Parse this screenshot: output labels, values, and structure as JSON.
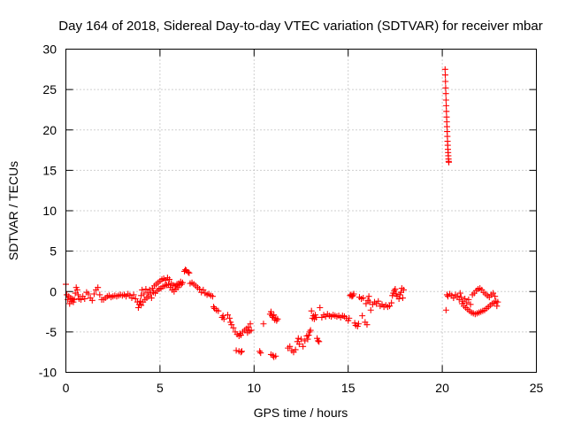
{
  "chart_data": {
    "type": "scatter",
    "title": "Day 164 of 2018, Sidereal Day-to-day VTEC variation (SDTVAR) for receiver mbar",
    "xlabel": "GPS time / hours",
    "ylabel": "SDTVAR / TECUs",
    "xlim": [
      0,
      25
    ],
    "ylim": [
      -10,
      30
    ],
    "xticks": [
      0,
      5,
      10,
      15,
      20,
      25
    ],
    "yticks": [
      -10,
      -5,
      0,
      5,
      10,
      15,
      20,
      25,
      30
    ],
    "xtick_labels": [
      "0",
      "5",
      "10",
      "15",
      "20",
      "25"
    ],
    "ytick_labels": [
      "-10",
      "-5",
      "0",
      "5",
      "10",
      "15",
      "20",
      "25",
      "30"
    ],
    "grid": true,
    "legend": "none",
    "marker": "plus",
    "series": [
      {
        "name": "SDTVAR",
        "color": "#ff0000",
        "points": [
          [
            0.0,
            0.9
          ],
          [
            0.05,
            -0.4
          ],
          [
            0.1,
            -1.0
          ],
          [
            0.15,
            -0.6
          ],
          [
            0.2,
            -1.5
          ],
          [
            0.25,
            -0.8
          ],
          [
            0.3,
            -1.2
          ],
          [
            0.35,
            -0.9
          ],
          [
            0.4,
            -1.3
          ],
          [
            0.45,
            -1.0
          ],
          [
            0.5,
            -0.2
          ],
          [
            0.55,
            0.5
          ],
          [
            0.6,
            0.2
          ],
          [
            0.65,
            -0.4
          ],
          [
            0.7,
            -0.9
          ],
          [
            0.8,
            -1.0
          ],
          [
            0.9,
            -0.6
          ],
          [
            1.0,
            -0.9
          ],
          [
            1.1,
            -0.1
          ],
          [
            1.2,
            -0.3
          ],
          [
            1.3,
            -0.8
          ],
          [
            1.4,
            -1.1
          ],
          [
            1.5,
            -0.3
          ],
          [
            1.6,
            0.2
          ],
          [
            1.7,
            0.5
          ],
          [
            1.8,
            -0.4
          ],
          [
            1.9,
            -1.0
          ],
          [
            2.0,
            -1.0
          ],
          [
            2.1,
            -0.8
          ],
          [
            2.2,
            -0.6
          ],
          [
            2.3,
            -0.5
          ],
          [
            2.4,
            -0.7
          ],
          [
            2.5,
            -0.6
          ],
          [
            2.6,
            -0.5
          ],
          [
            2.7,
            -0.6
          ],
          [
            2.8,
            -0.5
          ],
          [
            2.9,
            -0.4
          ],
          [
            3.0,
            -0.5
          ],
          [
            3.1,
            -0.4
          ],
          [
            3.2,
            -0.6
          ],
          [
            3.3,
            -0.3
          ],
          [
            3.4,
            -0.5
          ],
          [
            3.5,
            -0.8
          ],
          [
            3.6,
            -0.4
          ],
          [
            3.7,
            -0.9
          ],
          [
            3.8,
            -1.3
          ],
          [
            3.85,
            -2.0
          ],
          [
            3.9,
            -1.6
          ],
          [
            3.95,
            -1.2
          ],
          [
            4.0,
            -0.5
          ],
          [
            4.0,
            -1.7
          ],
          [
            4.05,
            0.2
          ],
          [
            4.1,
            -1.3
          ],
          [
            4.15,
            -0.3
          ],
          [
            4.2,
            -1.0
          ],
          [
            4.25,
            0.3
          ],
          [
            4.3,
            -0.8
          ],
          [
            4.35,
            -0.1
          ],
          [
            4.4,
            -0.6
          ],
          [
            4.45,
            0.2
          ],
          [
            4.5,
            -0.3
          ],
          [
            4.55,
            -0.8
          ],
          [
            4.6,
            0.4
          ],
          [
            4.65,
            -0.1
          ],
          [
            4.7,
            0.7
          ],
          [
            4.75,
            -0.2
          ],
          [
            4.8,
            0.9
          ],
          [
            4.85,
            0.1
          ],
          [
            4.9,
            1.1
          ],
          [
            4.95,
            0.3
          ],
          [
            5.0,
            1.3
          ],
          [
            5.05,
            0.4
          ],
          [
            5.1,
            1.5
          ],
          [
            5.15,
            0.6
          ],
          [
            5.2,
            1.6
          ],
          [
            5.25,
            0.7
          ],
          [
            5.3,
            1.4
          ],
          [
            5.35,
            0.8
          ],
          [
            5.4,
            1.7
          ],
          [
            5.45,
            0.9
          ],
          [
            5.5,
            1.5
          ],
          [
            5.55,
            0.5
          ],
          [
            5.6,
            1.0
          ],
          [
            5.65,
            0.2
          ],
          [
            5.7,
            0.8
          ],
          [
            5.75,
            0.0
          ],
          [
            5.8,
            0.7
          ],
          [
            5.85,
            0.3
          ],
          [
            5.9,
            0.9
          ],
          [
            5.95,
            0.5
          ],
          [
            6.0,
            1.0
          ],
          [
            6.05,
            0.8
          ],
          [
            6.1,
            1.2
          ],
          [
            6.15,
            0.9
          ],
          [
            6.2,
            1.1
          ],
          [
            6.3,
            2.5
          ],
          [
            6.35,
            2.7
          ],
          [
            6.4,
            2.6
          ],
          [
            6.5,
            2.4
          ],
          [
            6.55,
            2.3
          ],
          [
            6.6,
            1.0
          ],
          [
            6.7,
            1.1
          ],
          [
            6.8,
            0.9
          ],
          [
            6.9,
            0.7
          ],
          [
            7.0,
            0.5
          ],
          [
            7.1,
            0.3
          ],
          [
            7.2,
            -0.1
          ],
          [
            7.3,
            0.2
          ],
          [
            7.4,
            -0.2
          ],
          [
            7.5,
            -0.4
          ],
          [
            7.6,
            -0.3
          ],
          [
            7.7,
            -0.5
          ],
          [
            7.8,
            -0.6
          ],
          [
            7.85,
            -1.9
          ],
          [
            7.9,
            -2.1
          ],
          [
            8.0,
            -2.3
          ],
          [
            8.1,
            -2.4
          ],
          [
            8.3,
            -3.2
          ],
          [
            8.35,
            -3.0
          ],
          [
            8.4,
            -3.4
          ],
          [
            8.6,
            -2.9
          ],
          [
            8.7,
            -3.3
          ],
          [
            8.75,
            -3.8
          ],
          [
            8.8,
            -4.1
          ],
          [
            8.9,
            -4.5
          ],
          [
            9.0,
            -5.0
          ],
          [
            9.1,
            -5.3
          ],
          [
            9.2,
            -5.5
          ],
          [
            9.25,
            -5.2
          ],
          [
            9.3,
            -5.4
          ],
          [
            9.4,
            -5.0
          ],
          [
            9.5,
            -4.8
          ],
          [
            9.6,
            -4.6
          ],
          [
            9.65,
            -5.1
          ],
          [
            9.7,
            -4.4
          ],
          [
            9.75,
            -4.9
          ],
          [
            9.8,
            -4.0
          ],
          [
            9.85,
            -4.8
          ],
          [
            9.05,
            -7.3
          ],
          [
            9.2,
            -7.4
          ],
          [
            9.3,
            -7.5
          ],
          [
            9.35,
            -7.4
          ],
          [
            10.3,
            -7.4
          ],
          [
            10.35,
            -7.6
          ],
          [
            10.5,
            -4.0
          ],
          [
            10.9,
            -7.8
          ],
          [
            11.0,
            -7.9
          ],
          [
            11.05,
            -8.1
          ],
          [
            11.15,
            -8.0
          ],
          [
            10.85,
            -2.8
          ],
          [
            10.9,
            -2.5
          ],
          [
            10.95,
            -3.0
          ],
          [
            11.0,
            -3.2
          ],
          [
            11.05,
            -2.9
          ],
          [
            11.1,
            -3.5
          ],
          [
            11.15,
            -3.3
          ],
          [
            11.2,
            -3.6
          ],
          [
            11.25,
            -3.4
          ],
          [
            11.8,
            -7.0
          ],
          [
            11.9,
            -6.8
          ],
          [
            12.0,
            -7.3
          ],
          [
            12.1,
            -7.5
          ],
          [
            12.2,
            -7.2
          ],
          [
            12.3,
            -6.2
          ],
          [
            12.35,
            -5.8
          ],
          [
            12.4,
            -6.5
          ],
          [
            12.5,
            -5.9
          ],
          [
            12.6,
            -6.8
          ],
          [
            12.7,
            -6.1
          ],
          [
            12.8,
            -5.5
          ],
          [
            12.85,
            -5.9
          ],
          [
            12.9,
            -5.4
          ],
          [
            12.95,
            -5.0
          ],
          [
            13.0,
            -4.8
          ],
          [
            13.05,
            -2.4
          ],
          [
            13.1,
            -3.3
          ],
          [
            13.15,
            -3.0
          ],
          [
            13.2,
            -3.4
          ],
          [
            13.25,
            -2.9
          ],
          [
            13.3,
            -3.2
          ],
          [
            13.35,
            -5.8
          ],
          [
            13.4,
            -6.1
          ],
          [
            13.45,
            -6.2
          ],
          [
            13.5,
            -2.0
          ],
          [
            13.6,
            -3.2
          ],
          [
            13.7,
            -2.9
          ],
          [
            13.8,
            -3.1
          ],
          [
            13.9,
            -2.8
          ],
          [
            14.0,
            -3.0
          ],
          [
            14.1,
            -3.1
          ],
          [
            14.2,
            -2.9
          ],
          [
            14.3,
            -3.0
          ],
          [
            14.4,
            -3.1
          ],
          [
            14.5,
            -3.0
          ],
          [
            14.6,
            -3.2
          ],
          [
            14.7,
            -3.0
          ],
          [
            14.8,
            -3.1
          ],
          [
            14.9,
            -3.3
          ],
          [
            15.0,
            -3.6
          ],
          [
            15.05,
            -3.3
          ],
          [
            15.1,
            -0.5
          ],
          [
            15.15,
            -0.4
          ],
          [
            15.2,
            -0.6
          ],
          [
            15.25,
            -0.5
          ],
          [
            15.3,
            -0.3
          ],
          [
            15.35,
            -3.9
          ],
          [
            15.4,
            -4.2
          ],
          [
            15.5,
            -4.3
          ],
          [
            15.55,
            -4.0
          ],
          [
            15.6,
            -0.7
          ],
          [
            15.7,
            -0.9
          ],
          [
            15.75,
            -3.0
          ],
          [
            15.8,
            -0.8
          ],
          [
            15.9,
            -3.8
          ],
          [
            15.95,
            -1.5
          ],
          [
            16.0,
            -4.1
          ],
          [
            16.05,
            -1.1
          ],
          [
            16.1,
            -0.6
          ],
          [
            16.15,
            -1.3
          ],
          [
            16.2,
            -2.3
          ],
          [
            16.3,
            -1.6
          ],
          [
            16.4,
            -1.3
          ],
          [
            16.5,
            -1.5
          ],
          [
            16.6,
            -1.2
          ],
          [
            16.7,
            -1.8
          ],
          [
            16.8,
            -1.6
          ],
          [
            16.9,
            -1.9
          ],
          [
            17.0,
            -1.7
          ],
          [
            17.1,
            -1.9
          ],
          [
            17.2,
            -1.8
          ],
          [
            17.3,
            -1.4
          ],
          [
            17.35,
            -0.5
          ],
          [
            17.4,
            -0.2
          ],
          [
            17.45,
            0.1
          ],
          [
            17.5,
            0.3
          ],
          [
            17.55,
            -0.3
          ],
          [
            17.6,
            -0.6
          ],
          [
            17.7,
            -0.9
          ],
          [
            17.75,
            -0.4
          ],
          [
            17.8,
            -0.1
          ],
          [
            17.85,
            0.4
          ],
          [
            17.9,
            -0.8
          ],
          [
            17.95,
            0.2
          ],
          [
            20.15,
            27.5
          ],
          [
            20.16,
            26.8
          ],
          [
            20.17,
            26.0
          ],
          [
            20.18,
            25.2
          ],
          [
            20.19,
            24.5
          ],
          [
            20.2,
            23.7
          ],
          [
            20.21,
            23.0
          ],
          [
            20.22,
            22.3
          ],
          [
            20.23,
            21.6
          ],
          [
            20.24,
            21.0
          ],
          [
            20.25,
            20.4
          ],
          [
            20.26,
            19.8
          ],
          [
            20.27,
            19.2
          ],
          [
            20.28,
            18.6
          ],
          [
            20.29,
            18.1
          ],
          [
            20.3,
            17.6
          ],
          [
            20.31,
            17.2
          ],
          [
            20.32,
            16.8
          ],
          [
            20.33,
            16.4
          ],
          [
            20.34,
            16.1
          ],
          [
            20.35,
            16.0
          ],
          [
            20.2,
            -2.3
          ],
          [
            20.25,
            -0.4
          ],
          [
            20.3,
            -0.6
          ],
          [
            20.4,
            -0.3
          ],
          [
            20.5,
            -0.5
          ],
          [
            20.6,
            -0.8
          ],
          [
            20.7,
            -0.4
          ],
          [
            20.8,
            -0.6
          ],
          [
            20.9,
            -1.0
          ],
          [
            20.95,
            -0.2
          ],
          [
            21.0,
            -0.7
          ],
          [
            21.05,
            -1.5
          ],
          [
            21.1,
            -1.2
          ],
          [
            21.15,
            -1.8
          ],
          [
            21.2,
            -0.9
          ],
          [
            21.25,
            -2.0
          ],
          [
            21.3,
            -1.4
          ],
          [
            21.35,
            -2.2
          ],
          [
            21.4,
            -1.0
          ],
          [
            21.45,
            -2.4
          ],
          [
            21.5,
            -1.6
          ],
          [
            21.55,
            -2.6
          ],
          [
            21.6,
            -0.4
          ],
          [
            21.65,
            -2.7
          ],
          [
            21.7,
            -0.2
          ],
          [
            21.75,
            -2.8
          ],
          [
            21.8,
            0.1
          ],
          [
            21.85,
            -2.7
          ],
          [
            21.9,
            0.3
          ],
          [
            21.95,
            -2.6
          ],
          [
            22.0,
            0.4
          ],
          [
            22.05,
            -2.5
          ],
          [
            22.1,
            0.2
          ],
          [
            22.15,
            -2.4
          ],
          [
            22.2,
            -0.1
          ],
          [
            22.25,
            -2.3
          ],
          [
            22.3,
            -0.3
          ],
          [
            22.35,
            -2.1
          ],
          [
            22.4,
            -0.5
          ],
          [
            22.45,
            -1.9
          ],
          [
            22.5,
            -0.7
          ],
          [
            22.55,
            -1.7
          ],
          [
            22.6,
            -0.4
          ],
          [
            22.65,
            -1.5
          ],
          [
            22.7,
            -0.2
          ],
          [
            22.75,
            -1.4
          ],
          [
            22.8,
            -0.6
          ],
          [
            22.85,
            -1.2
          ],
          [
            22.9,
            -1.8
          ],
          [
            22.95,
            -1.3
          ]
        ]
      }
    ]
  }
}
